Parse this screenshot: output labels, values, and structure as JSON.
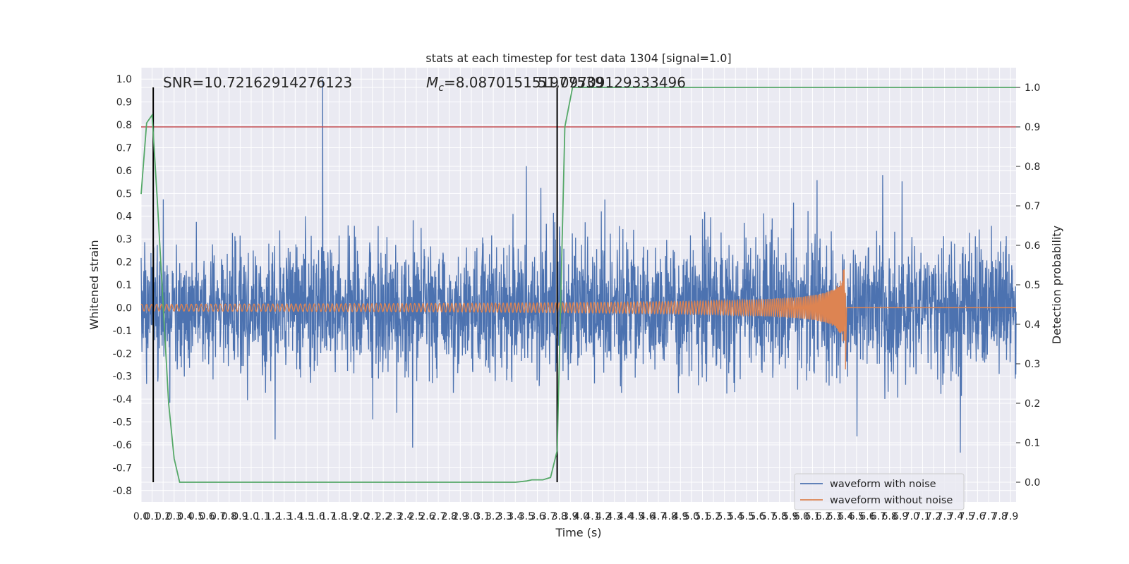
{
  "chart_data": {
    "type": "line",
    "title": "stats at each timestep for test data 1304 [signal=1.0]",
    "xlabel": "Time (s)",
    "ylabel_left": "Whitened strain",
    "ylabel_right": "Detection probability",
    "xlim": [
      0.0,
      7.95
    ],
    "ylim_left": [
      -0.85,
      1.05
    ],
    "ylim_right": [
      -0.05,
      1.05
    ],
    "grid": true,
    "x_ticks": [
      "0.0",
      "0.1",
      "0.2",
      "0.3",
      "0.4",
      "0.5",
      "0.6",
      "0.7",
      "0.8",
      "0.9",
      "1.0",
      "1.1",
      "1.2",
      "1.3",
      "1.4",
      "1.5",
      "1.6",
      "1.7",
      "1.8",
      "1.9",
      "2.0",
      "2.1",
      "2.2",
      "2.3",
      "2.4",
      "2.5",
      "2.6",
      "2.7",
      "2.8",
      "2.9",
      "3.0",
      "3.1",
      "3.2",
      "3.3",
      "3.4",
      "3.5",
      "3.6",
      "3.7",
      "3.8",
      "3.9",
      "4.0",
      "4.1",
      "4.2",
      "4.3",
      "4.4",
      "4.5",
      "4.6",
      "4.7",
      "4.8",
      "4.9",
      "5.0",
      "5.1",
      "5.2",
      "5.3",
      "5.4",
      "5.5",
      "5.6",
      "5.7",
      "5.8",
      "5.9",
      "6.0",
      "6.1",
      "6.2",
      "6.3",
      "6.4",
      "6.5",
      "6.6",
      "6.7",
      "6.8",
      "6.9",
      "7.0",
      "7.1",
      "7.2",
      "7.3",
      "7.4",
      "7.5",
      "7.6",
      "7.7",
      "7.8",
      "7.9"
    ],
    "y_ticks_left": [
      "-0.8",
      "-0.7",
      "-0.6",
      "-0.5",
      "-0.4",
      "-0.3",
      "-0.2",
      "-0.1",
      "0.0",
      "0.1",
      "0.2",
      "0.3",
      "0.4",
      "0.5",
      "0.6",
      "0.7",
      "0.8",
      "0.9",
      "1.0"
    ],
    "y_ticks_right": [
      "0.0",
      "0.1",
      "0.2",
      "0.3",
      "0.4",
      "0.5",
      "0.6",
      "0.7",
      "0.8",
      "0.9",
      "1.0"
    ],
    "annotations": {
      "snr": "SNR=10.72162914276123",
      "mc_prefix": "M",
      "mc_sub": "c",
      "mc_value": "=8.087015151977539",
      "overlap": "51.09709129333496"
    },
    "vlines_x": [
      0.11,
      3.78
    ],
    "threshold_right": 0.9,
    "series": [
      {
        "name": "waveform with noise",
        "color": "#4c72b0",
        "axis": "left",
        "noise_amplitude": 0.28,
        "peak": 1.0,
        "peak_x": 1.65
      },
      {
        "name": "waveform without noise",
        "color": "#dd8452",
        "axis": "left",
        "start_amplitude": 0.015,
        "end_amplitude": 0.27,
        "merger_x": 6.4,
        "post_merger": 0.0
      },
      {
        "name": "detection probability",
        "color": "#55a868",
        "axis": "right",
        "x": [
          0.0,
          0.05,
          0.1,
          0.15,
          0.2,
          0.25,
          0.3,
          0.35,
          0.4,
          3.4,
          3.5,
          3.55,
          3.65,
          3.72,
          3.78,
          3.85,
          3.92,
          3.95,
          7.95
        ],
        "y": [
          0.73,
          0.91,
          0.93,
          0.7,
          0.45,
          0.2,
          0.06,
          0.0,
          0.0,
          0.0,
          0.003,
          0.006,
          0.006,
          0.012,
          0.08,
          0.9,
          1.0,
          1.0,
          1.0
        ]
      }
    ],
    "legend": {
      "position": "lower-right",
      "entries": [
        "waveform with noise",
        "waveform without noise"
      ]
    }
  }
}
